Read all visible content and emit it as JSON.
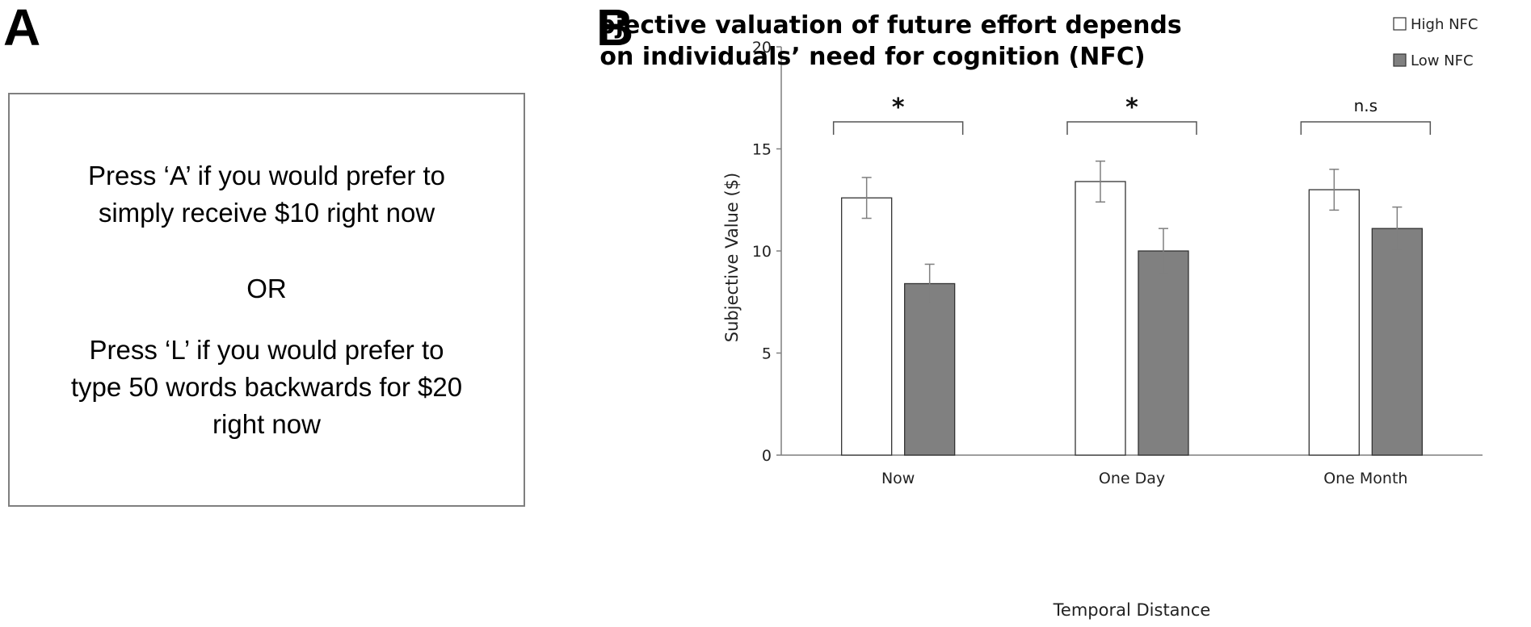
{
  "panel_a": {
    "letter": "A",
    "option_a": [
      "Press ‘A’ if you would prefer to",
      "simply receive $10 right now"
    ],
    "separator": "OR",
    "option_l": [
      "Press ‘L’ if you would prefer to",
      "type 50 words backwards for $20",
      "right now"
    ]
  },
  "panel_b": {
    "letter": "B"
  },
  "colors": {
    "high": "#ffffff",
    "low": "#808080",
    "axis": "#7f7f7f",
    "error": "#7f7f7f"
  },
  "chart_data": {
    "type": "bar",
    "title": [
      "Subjective valuation of future effort depends",
      "on individuals’ need for cognition (NFC)"
    ],
    "xlabel": "Temporal Distance",
    "ylabel": "Subjective Value ($)",
    "ylim": [
      0,
      20
    ],
    "yticks": [
      0,
      5,
      10,
      15,
      20
    ],
    "categories": [
      "Now",
      "One Day",
      "One Month"
    ],
    "series": [
      {
        "name": "High NFC",
        "values": [
          12.6,
          13.4,
          13.0
        ],
        "errors": [
          1.0,
          1.0,
          1.0
        ]
      },
      {
        "name": "Low NFC",
        "values": [
          8.4,
          10.0,
          11.1
        ],
        "errors": [
          0.95,
          1.1,
          1.05
        ]
      }
    ],
    "significance": [
      "*",
      "*",
      "n.s"
    ],
    "legend_position": "top-right"
  }
}
